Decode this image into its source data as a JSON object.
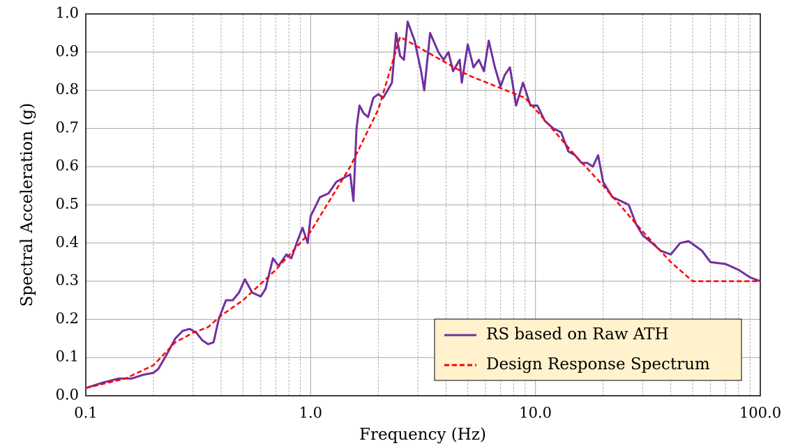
{
  "chart_data": {
    "type": "line",
    "log_x": true,
    "grid": true,
    "legend": "lower right",
    "xlabel": "Frequency (Hz)",
    "ylabel": "Spectral Acceleration (g)",
    "xlim": [
      0.1,
      100
    ],
    "ylim": [
      0,
      1
    ],
    "xticks": [
      0.1,
      {
        "value": 1,
        "label": "1.0"
      },
      {
        "value": 10,
        "label": "10.0"
      },
      {
        "value": 100,
        "label": "100.0"
      }
    ],
    "xminorticks": [
      0.2,
      0.3,
      0.4,
      0.5,
      0.6,
      0.7,
      0.8,
      0.9,
      2,
      3,
      4,
      5,
      6,
      7,
      8,
      9,
      20,
      30,
      40,
      50,
      60,
      70,
      80,
      90
    ],
    "yticks": [
      {
        "value": 0,
        "label": "0.0"
      },
      0.1,
      0.2,
      0.3,
      0.4,
      0.5,
      0.6,
      0.7,
      0.8,
      0.9,
      {
        "value": 1,
        "label": "1.0"
      }
    ],
    "series": [
      {
        "name": "RS based on Raw ATH",
        "color": "#7030a0",
        "dashed": false,
        "x": [
          0.1,
          0.12,
          0.14,
          0.16,
          0.18,
          0.2,
          0.21,
          0.23,
          0.25,
          0.27,
          0.29,
          0.31,
          0.33,
          0.35,
          0.37,
          0.39,
          0.42,
          0.45,
          0.48,
          0.51,
          0.55,
          0.6,
          0.63,
          0.68,
          0.72,
          0.78,
          0.82,
          0.88,
          0.92,
          0.97,
          1.0,
          1.1,
          1.2,
          1.3,
          1.4,
          1.5,
          1.55,
          1.6,
          1.65,
          1.72,
          1.8,
          1.9,
          2.0,
          2.1,
          2.2,
          2.3,
          2.4,
          2.5,
          2.6,
          2.7,
          2.9,
          3.1,
          3.2,
          3.4,
          3.7,
          3.9,
          4.1,
          4.3,
          4.6,
          4.7,
          5.0,
          5.3,
          5.6,
          5.9,
          6.2,
          6.6,
          7.0,
          7.3,
          7.7,
          8.2,
          8.8,
          9.5,
          10.2,
          11,
          12,
          13,
          14,
          15,
          16,
          17,
          18,
          19,
          20,
          22,
          24,
          26,
          28,
          30,
          33,
          36,
          40,
          44,
          48,
          55,
          60,
          70,
          80,
          90,
          100
        ],
        "values": [
          0.02,
          0.035,
          0.045,
          0.045,
          0.055,
          0.06,
          0.07,
          0.11,
          0.15,
          0.17,
          0.175,
          0.165,
          0.145,
          0.135,
          0.14,
          0.2,
          0.25,
          0.25,
          0.27,
          0.305,
          0.27,
          0.26,
          0.28,
          0.36,
          0.34,
          0.37,
          0.36,
          0.41,
          0.44,
          0.4,
          0.47,
          0.52,
          0.53,
          0.56,
          0.57,
          0.58,
          0.51,
          0.7,
          0.76,
          0.74,
          0.73,
          0.78,
          0.79,
          0.78,
          0.8,
          0.82,
          0.95,
          0.89,
          0.88,
          0.98,
          0.93,
          0.85,
          0.8,
          0.95,
          0.9,
          0.88,
          0.9,
          0.85,
          0.88,
          0.82,
          0.92,
          0.86,
          0.88,
          0.85,
          0.93,
          0.86,
          0.81,
          0.84,
          0.86,
          0.76,
          0.82,
          0.76,
          0.76,
          0.72,
          0.7,
          0.69,
          0.64,
          0.63,
          0.61,
          0.61,
          0.6,
          0.63,
          0.56,
          0.52,
          0.51,
          0.5,
          0.45,
          0.42,
          0.4,
          0.38,
          0.37,
          0.4,
          0.405,
          0.38,
          0.35,
          0.345,
          0.33,
          0.31,
          0.3
        ]
      },
      {
        "name": "Design Response Spectrum",
        "color": "#ff0000",
        "dashed": true,
        "x": [
          0.1,
          0.15,
          0.2,
          0.25,
          0.3,
          0.35,
          0.4,
          0.5,
          0.7,
          1.0,
          1.5,
          2.0,
          2.5,
          5,
          9,
          10,
          15,
          20,
          30,
          40,
          50,
          100
        ],
        "values": [
          0.02,
          0.045,
          0.08,
          0.14,
          0.165,
          0.18,
          0.21,
          0.25,
          0.33,
          0.43,
          0.6,
          0.75,
          0.94,
          0.84,
          0.78,
          0.75,
          0.63,
          0.55,
          0.43,
          0.35,
          0.3,
          0.3
        ]
      }
    ]
  }
}
